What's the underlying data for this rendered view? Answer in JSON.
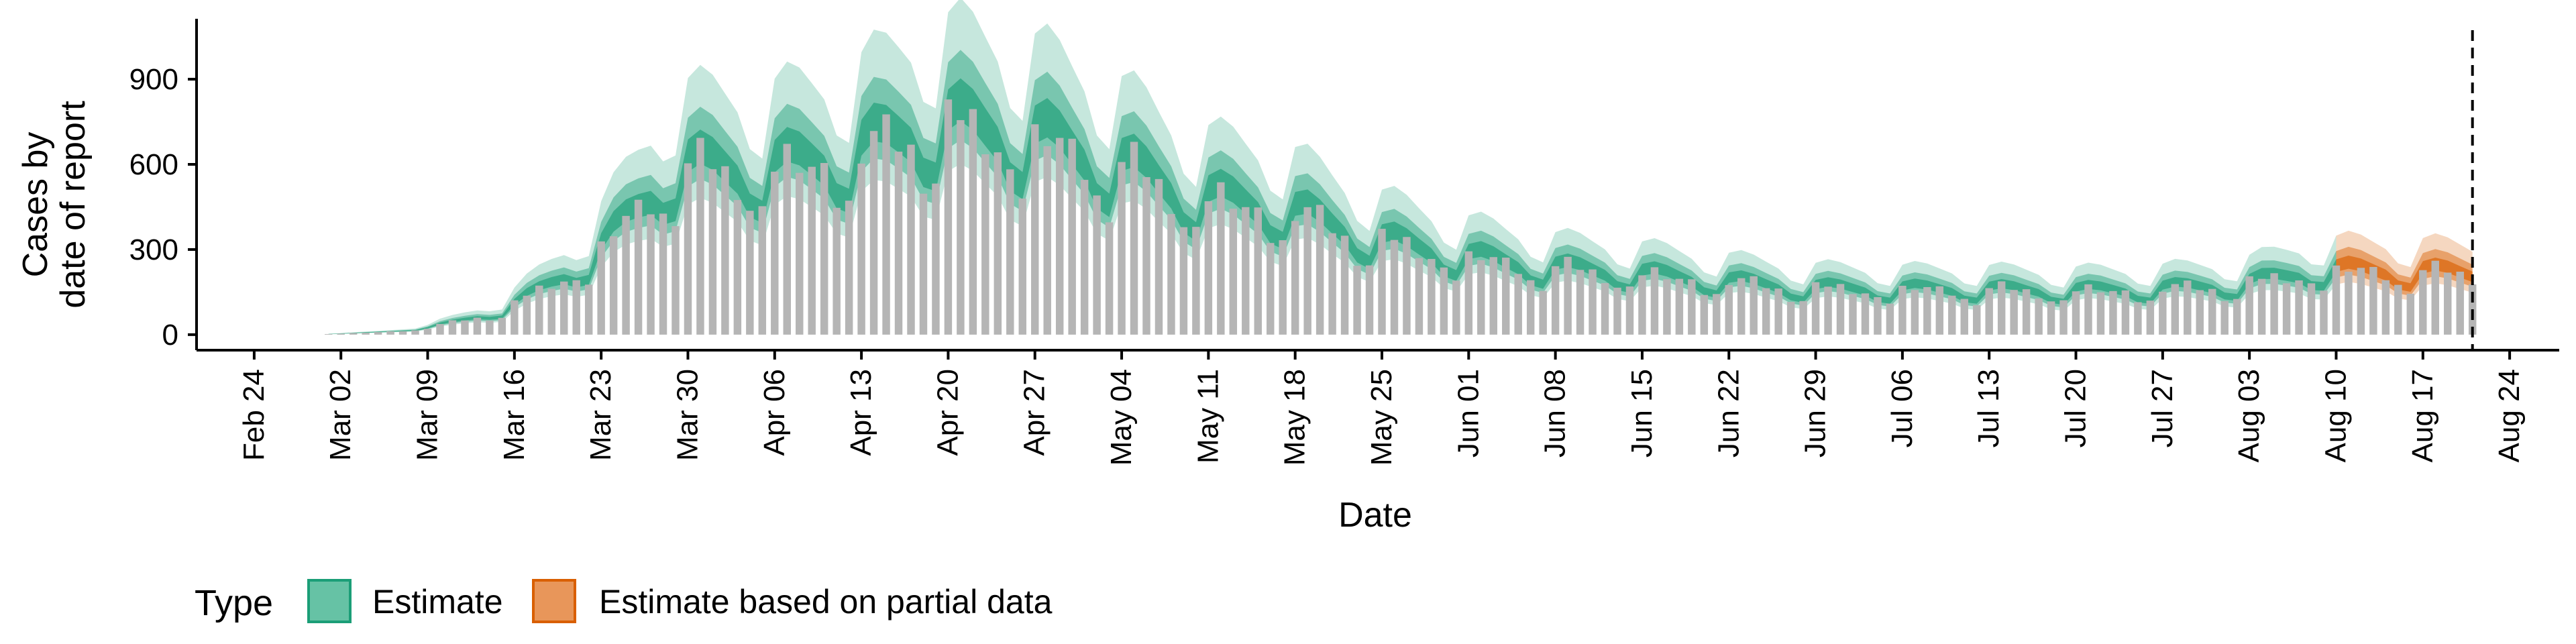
{
  "chart_data": {
    "type": "bar",
    "xlabel": "Date",
    "ylabel_lines": [
      "Cases by",
      "date of report"
    ],
    "year": 2020,
    "x_range": [
      "2020-02-20",
      "2020-08-28"
    ],
    "ylim": [
      -50,
      1120
    ],
    "y_ticks": [
      0,
      300,
      600,
      900
    ],
    "y_tick_labels": [
      "0",
      "300",
      "600",
      "900"
    ],
    "x_ticks": [
      "2020-02-24",
      "2020-03-02",
      "2020-03-09",
      "2020-03-16",
      "2020-03-23",
      "2020-03-30",
      "2020-04-06",
      "2020-04-13",
      "2020-04-20",
      "2020-04-27",
      "2020-05-04",
      "2020-05-11",
      "2020-05-18",
      "2020-05-25",
      "2020-06-01",
      "2020-06-08",
      "2020-06-15",
      "2020-06-22",
      "2020-06-29",
      "2020-07-06",
      "2020-07-13",
      "2020-07-20",
      "2020-07-27",
      "2020-08-03",
      "2020-08-10",
      "2020-08-17",
      "2020-08-24"
    ],
    "x_tick_labels": [
      "Feb 24",
      "Mar 02",
      "Mar 09",
      "Mar 16",
      "Mar 23",
      "Mar 30",
      "Apr 06",
      "Apr 13",
      "Apr 20",
      "Apr 27",
      "May 04",
      "May 11",
      "May 18",
      "May 25",
      "Jun 01",
      "Jun 08",
      "Jun 15",
      "Jun 22",
      "Jun 29",
      "Jul 06",
      "Jul 13",
      "Jul 20",
      "Jul 27",
      "Aug 03",
      "Aug 10",
      "Aug 17",
      "Aug 24"
    ],
    "grid": false,
    "vline_date": "2020-08-21",
    "partial_data_start": "2020-08-10",
    "legend": {
      "title": "Type",
      "position": "bottom",
      "entries": [
        {
          "label": "Estimate",
          "fill": "#66c2a5",
          "stroke": "#1b9e77"
        },
        {
          "label": "Estimate based on partial data",
          "fill": "#e8965a",
          "stroke": "#d95f02"
        }
      ]
    },
    "colors": {
      "bars": "#b5b5b5",
      "estimate": "#1b9e77",
      "partial": "#d95f02",
      "vline": "#000000"
    },
    "band_opacity": {
      "outer": 0.25,
      "mid": 0.45,
      "inner": 0.65
    },
    "weekly_anchors": [
      {
        "date": "2020-03-01",
        "median": 2
      },
      {
        "date": "2020-03-08",
        "median": 15
      },
      {
        "date": "2020-03-15",
        "median": 80
      },
      {
        "date": "2020-03-22",
        "median": 250
      },
      {
        "date": "2020-03-29",
        "median": 570
      },
      {
        "date": "2020-04-05",
        "median": 560
      },
      {
        "date": "2020-04-12",
        "median": 610
      },
      {
        "date": "2020-04-19",
        "median": 720
      },
      {
        "date": "2020-04-26",
        "median": 680
      },
      {
        "date": "2020-05-03",
        "median": 590
      },
      {
        "date": "2020-05-10",
        "median": 470
      },
      {
        "date": "2020-05-17",
        "median": 430
      },
      {
        "date": "2020-05-24",
        "median": 330
      },
      {
        "date": "2020-05-31",
        "median": 270
      },
      {
        "date": "2020-06-07",
        "median": 230
      },
      {
        "date": "2020-06-14",
        "median": 210
      },
      {
        "date": "2020-06-21",
        "median": 185
      },
      {
        "date": "2020-06-28",
        "median": 160
      },
      {
        "date": "2020-07-05",
        "median": 155
      },
      {
        "date": "2020-07-12",
        "median": 155
      },
      {
        "date": "2020-07-19",
        "median": 150
      },
      {
        "date": "2020-07-26",
        "median": 155
      },
      {
        "date": "2020-08-02",
        "median": 170
      },
      {
        "date": "2020-08-09",
        "median": 220
      },
      {
        "date": "2020-08-16",
        "median": 215
      },
      {
        "date": "2020-08-21",
        "median": 210
      }
    ]
  }
}
